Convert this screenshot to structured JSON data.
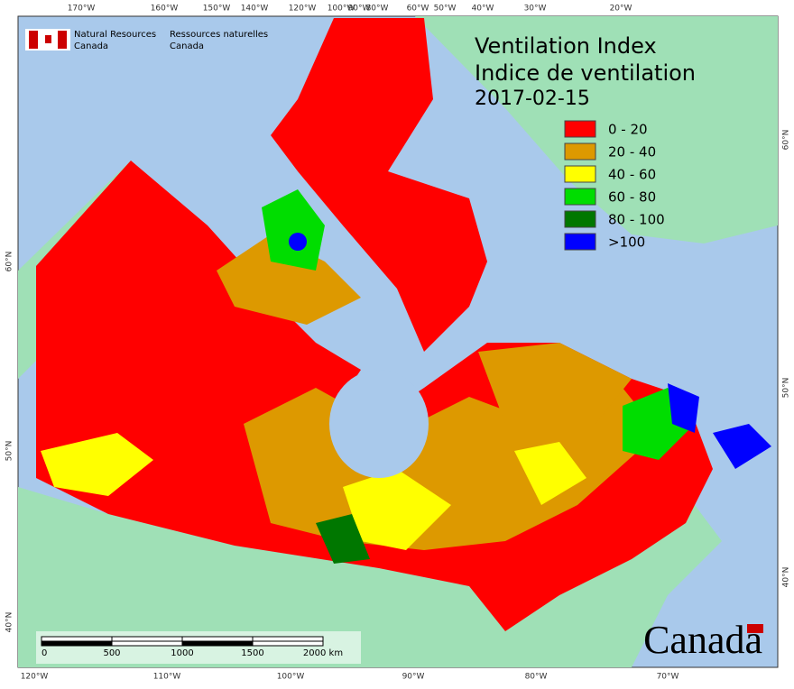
{
  "header": {
    "agency_en": [
      "Natural Resources",
      "Canada"
    ],
    "agency_fr": [
      "Ressources naturelles",
      "Canada"
    ]
  },
  "title": {
    "line1": "Ventilation Index",
    "line2": "Indice de ventilation",
    "date": "2017-02-15"
  },
  "legend": [
    {
      "label": "0 - 20",
      "color": "#ff0000"
    },
    {
      "label": "20 - 40",
      "color": "#dd9900"
    },
    {
      "label": "40 - 60",
      "color": "#ffff00"
    },
    {
      "label": "60 - 80",
      "color": "#00dd00"
    },
    {
      "label": "80 - 100",
      "color": "#007700"
    },
    {
      "label": ">100",
      "color": "#0000ff"
    }
  ],
  "graticule": {
    "top": [
      "170°W",
      "160°W",
      "150°W",
      "140°W",
      "120°W",
      "100°W",
      "90°W",
      "80°W",
      "60°W",
      "50°W",
      "40°W",
      "30°W",
      "20°W"
    ],
    "bottom": [
      "120°W",
      "110°W",
      "100°W",
      "90°W",
      "80°W",
      "70°W"
    ],
    "left": [
      "60°N",
      "50°N",
      "40°N"
    ],
    "right": [
      "60°N",
      "50°N",
      "40°N"
    ]
  },
  "scale_bar": [
    "0",
    "500",
    "1000",
    "1500",
    "2000 km"
  ],
  "wordmark": "Canada"
}
